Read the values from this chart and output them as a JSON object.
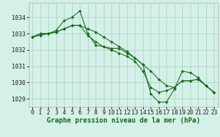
{
  "bg_color": "#d4f0e8",
  "grid_color": "#b0d8c8",
  "line_color": "#1a6b1a",
  "marker_color": "#1a6b1a",
  "xlabel": "Graphe pression niveau de la mer (hPa)",
  "xlabel_fontsize": 7,
  "tick_fontsize": 6,
  "ylim": [
    1028.5,
    1034.9
  ],
  "xlim": [
    -0.5,
    23.5
  ],
  "yticks": [
    1029,
    1030,
    1031,
    1032,
    1033,
    1034
  ],
  "xticks": [
    0,
    1,
    2,
    3,
    4,
    5,
    6,
    7,
    8,
    9,
    10,
    11,
    12,
    13,
    14,
    15,
    16,
    17,
    18,
    19,
    20,
    21,
    22,
    23
  ],
  "series1_x": [
    0,
    1,
    2,
    3,
    4,
    5,
    6,
    7,
    8,
    9,
    10,
    11,
    12,
    13,
    14,
    15,
    16,
    17,
    18,
    19,
    20,
    21,
    22,
    23
  ],
  "series1_y": [
    1032.8,
    1033.0,
    1033.0,
    1033.1,
    1033.3,
    1033.5,
    1033.5,
    1033.3,
    1033.1,
    1032.8,
    1032.5,
    1032.2,
    1031.9,
    1031.5,
    1031.1,
    1030.7,
    1030.2,
    1029.8,
    1029.7,
    1030.1,
    1030.1,
    1030.2,
    1029.8,
    1029.4
  ],
  "series2_x": [
    0,
    1,
    2,
    3,
    4,
    5,
    6,
    7,
    8,
    9,
    10,
    11,
    12,
    13,
    14,
    15,
    16,
    17,
    18,
    19,
    20,
    21,
    22,
    23
  ],
  "series2_y": [
    1032.8,
    1033.0,
    1033.0,
    1033.2,
    1033.8,
    1034.0,
    1034.4,
    1033.0,
    1032.3,
    1032.2,
    1032.1,
    1032.1,
    1031.8,
    1031.5,
    1031.1,
    1029.3,
    1028.8,
    1028.8,
    1029.6,
    1030.7,
    1030.6,
    1030.3,
    1029.8,
    1029.4
  ],
  "series3_x": [
    0,
    1,
    2,
    3,
    4,
    5,
    6,
    7,
    8,
    9,
    10,
    11,
    12,
    13,
    14,
    15,
    16,
    17,
    18,
    19,
    20,
    21,
    22,
    23
  ],
  "series3_y": [
    1032.8,
    1032.9,
    1033.0,
    1033.1,
    1033.3,
    1033.5,
    1033.5,
    1032.9,
    1032.5,
    1032.2,
    1032.0,
    1031.8,
    1031.6,
    1031.3,
    1030.7,
    1029.7,
    1029.4,
    1029.5,
    1029.7,
    1030.1,
    1030.1,
    1030.2,
    1029.8,
    1029.4
  ]
}
